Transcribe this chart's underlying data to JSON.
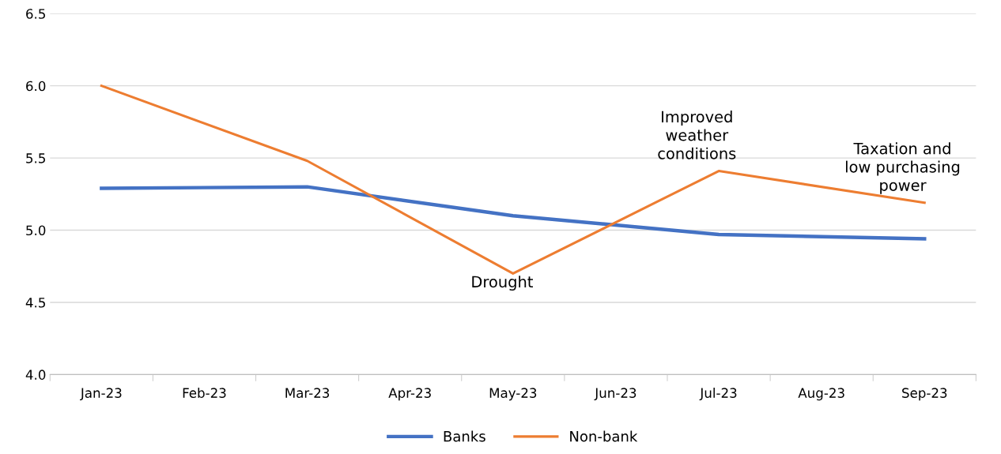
{
  "chart_data": {
    "type": "line",
    "categories": [
      "Jan-23",
      "Feb-23",
      "Mar-23",
      "Apr-23",
      "May-23",
      "Jun-23",
      "Jul-23",
      "Aug-23",
      "Sep-23"
    ],
    "series": [
      {
        "name": "Banks",
        "color": "#4472c4",
        "values": [
          5.29,
          null,
          5.3,
          null,
          5.1,
          null,
          4.97,
          null,
          4.94
        ]
      },
      {
        "name": "Non-bank",
        "color": "#ed7d31",
        "values": [
          6.0,
          null,
          5.48,
          null,
          4.7,
          null,
          5.41,
          null,
          5.19
        ]
      }
    ],
    "ylim": [
      4.0,
      6.5
    ],
    "yticks": [
      {
        "value": 4.0,
        "label": "4.0"
      },
      {
        "value": 4.5,
        "label": "4.5"
      },
      {
        "value": 5.0,
        "label": "5.0"
      },
      {
        "value": 5.5,
        "label": "5.5"
      },
      {
        "value": 6.0,
        "label": "6.0"
      },
      {
        "value": 6.5,
        "label": "6.5"
      }
    ],
    "grid": "y",
    "legend": "bottom",
    "marker": "none",
    "line_style": "solid",
    "annotations": [
      {
        "text": "Drought",
        "x": "May-23",
        "y": 4.7
      },
      {
        "text": "Improved\nweather\nconditions",
        "x": "Jul-23",
        "y": 5.41
      },
      {
        "text": "Taxation and\nlow purchasing\npower",
        "x": "Sep-23",
        "y": 5.19
      }
    ]
  }
}
